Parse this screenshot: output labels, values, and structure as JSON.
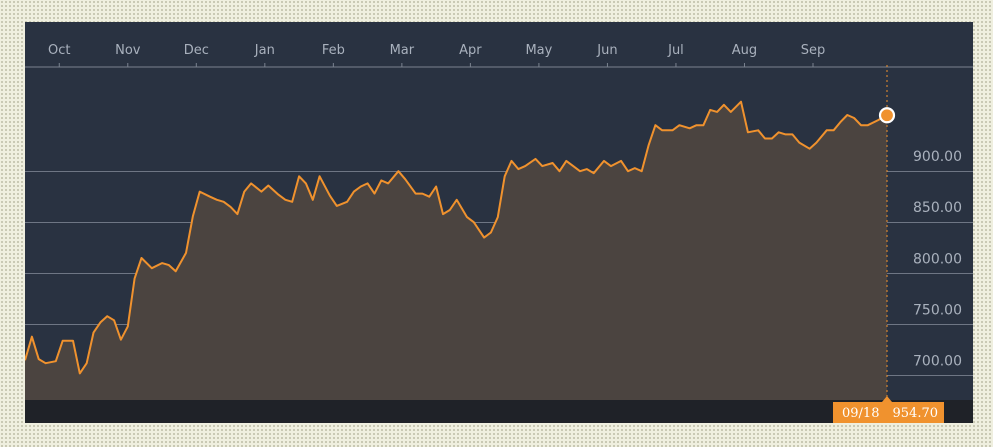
{
  "colors": {
    "background": "#293241",
    "line": "#f0922e",
    "fill": "#4b4440",
    "grid": "#7b8390",
    "footer": "#1f2228",
    "marker_fill": "#f0922e",
    "marker_stroke": "#ffffff",
    "flag": "#f0922e"
  },
  "chart_data": {
    "type": "area",
    "title": "",
    "xlabel": "",
    "ylabel": "",
    "x_tick_labels": [
      "Oct",
      "Nov",
      "Dec",
      "Jan",
      "Feb",
      "Mar",
      "Apr",
      "May",
      "Jun",
      "Jul",
      "Aug",
      "Sep"
    ],
    "y_tick_labels": [
      "900.00",
      "850.00",
      "800.00",
      "750.00",
      "700.00"
    ],
    "y_ticks": [
      900,
      850,
      800,
      750,
      700
    ],
    "ylim": [
      676,
      1000
    ],
    "xlim": [
      0,
      12.58
    ],
    "grid": true,
    "x_axis_position": "top",
    "y_axis_position": "right",
    "series": [
      {
        "x": [
          0,
          0.1,
          0.2,
          0.3,
          0.45,
          0.55,
          0.7,
          0.8,
          0.9,
          1.0,
          1.1,
          1.2,
          1.3,
          1.4,
          1.5,
          1.6,
          1.7,
          1.85,
          2.0,
          2.1,
          2.2,
          2.35,
          2.45,
          2.55,
          2.7,
          2.8,
          2.9,
          3.0,
          3.1,
          3.2,
          3.3,
          3.45,
          3.55,
          3.7,
          3.8,
          3.9,
          4.0,
          4.1,
          4.2,
          4.3,
          4.45,
          4.55,
          4.7,
          4.8,
          4.9,
          5.0,
          5.1,
          5.2,
          5.3,
          5.45,
          5.55,
          5.7,
          5.8,
          5.9,
          6.0,
          6.1,
          6.2,
          6.3,
          6.45,
          6.55,
          6.7,
          6.8,
          6.9,
          7.0,
          7.1,
          7.2,
          7.3,
          7.45,
          7.55,
          7.7,
          7.8,
          7.9,
          8.0,
          8.1,
          8.2,
          8.3,
          8.45,
          8.55,
          8.7,
          8.8,
          8.9,
          9.0,
          9.1,
          9.2,
          9.3,
          9.45,
          9.55,
          9.7,
          9.8,
          9.9,
          10.0,
          10.1,
          10.2,
          10.3,
          10.45,
          10.55,
          10.7,
          10.8,
          10.9,
          11.0,
          11.1,
          11.2,
          11.3,
          11.45,
          11.55,
          11.7,
          11.8,
          11.9,
          12.0,
          12.1,
          12.2,
          12.3,
          12.45,
          12.58
        ],
        "values": [
          715,
          738,
          716,
          712,
          714,
          734,
          734,
          702,
          712,
          742,
          752,
          758,
          754,
          735,
          748,
          795,
          815,
          805,
          810,
          808,
          802,
          820,
          856,
          880,
          875,
          872,
          870,
          865,
          858,
          880,
          888,
          880,
          886,
          877,
          872,
          870,
          895,
          888,
          872,
          895,
          876,
          866,
          870,
          880,
          885,
          888,
          878,
          891,
          888,
          900,
          892,
          878,
          878,
          875,
          885,
          858,
          862,
          872,
          855,
          850,
          835,
          840,
          855,
          895,
          910,
          902,
          905,
          912,
          905,
          908,
          900,
          910,
          905,
          900,
          902,
          898,
          910,
          905,
          910,
          900,
          903,
          900,
          925,
          945,
          940,
          940,
          945,
          942,
          945,
          945,
          960,
          958,
          965,
          958,
          968,
          938,
          940,
          932,
          932,
          938,
          936,
          936,
          928,
          922,
          928,
          940,
          940,
          948,
          955,
          952,
          945,
          945,
          950,
          954.7
        ]
      }
    ],
    "last_point": {
      "date_label": "09/18",
      "value_label": "954.70",
      "value": 954.7
    }
  }
}
